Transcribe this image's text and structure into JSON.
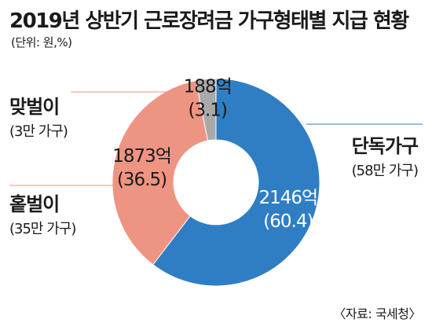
{
  "header": {
    "title": "2019년 상반기 근로장려금 가구형태별 지급 현황",
    "unit": "(단위: 원,%)"
  },
  "categories": [
    {
      "name": "맞벌이",
      "sub": "(3만 가구)"
    },
    {
      "name": "홑벌이",
      "sub": "(35만 가구)"
    },
    {
      "name": "단독가구",
      "sub": "(58만 가구)"
    }
  ],
  "source": "〈자료: 국세청〉",
  "chart_data": {
    "type": "pie",
    "title": "2019년 상반기 근로장려금 가구형태별 지급 현황",
    "unit": "(단위: 원,%)",
    "start_angle_deg": 0,
    "direction": "clockwise",
    "donut": true,
    "slices": [
      {
        "label": "단독가구",
        "amount_label": "2146억",
        "percent_label": "(60.4)",
        "percent": 60.4,
        "color": "#2f7ec4",
        "text_color": "#ffffff"
      },
      {
        "label": "홑벌이",
        "amount_label": "1873억",
        "percent_label": "(36.5)",
        "percent": 36.5,
        "color": "#ee9482",
        "text_color": "#1a1a1a"
      },
      {
        "label": "맞벌이",
        "amount_label": "188억",
        "percent_label": "(3.1)",
        "percent": 3.1,
        "color": "#a9a9a9",
        "text_color": "#1a1a1a"
      }
    ],
    "leader_color": "#2f7ec4"
  }
}
